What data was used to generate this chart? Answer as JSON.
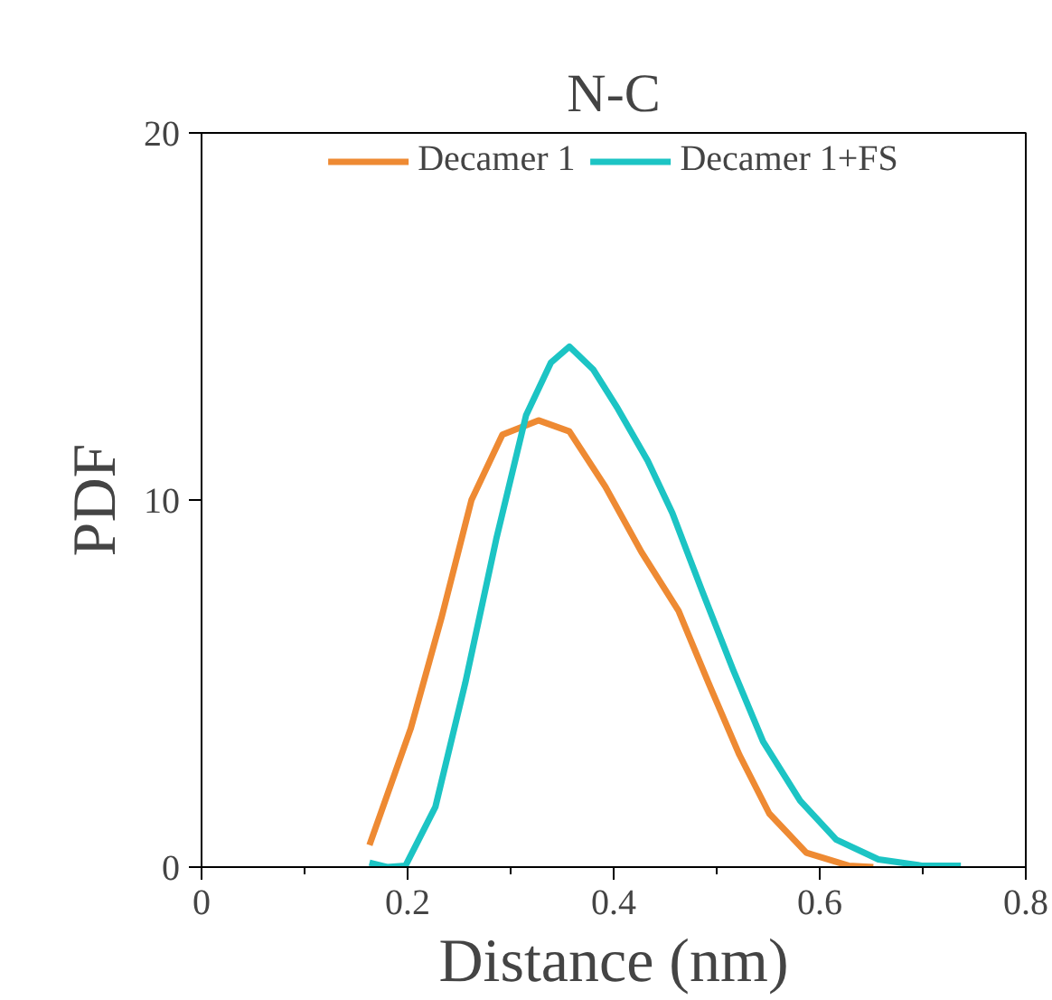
{
  "chart_data": {
    "type": "line",
    "title": "N-C",
    "xlabel": "Distance (nm)",
    "ylabel": "PDF",
    "xlim": [
      0,
      0.8
    ],
    "xticks": [
      0,
      0.2,
      0.4,
      0.6,
      0.8
    ],
    "ylim": [
      0,
      20
    ],
    "yticks": [
      0,
      10,
      20
    ],
    "grid": false,
    "legend": "top",
    "marker": "none",
    "line_style": "solid",
    "series": [
      {
        "name": "Decamer 1",
        "color": "#ee8a33",
        "x": [
          0.163,
          0.203,
          0.233,
          0.262,
          0.292,
          0.327,
          0.357,
          0.392,
          0.427,
          0.463,
          0.492,
          0.522,
          0.551,
          0.587,
          0.628,
          0.652
        ],
        "values": [
          0.6,
          3.77,
          6.8,
          10.0,
          11.78,
          12.17,
          11.87,
          10.36,
          8.58,
          6.98,
          5.02,
          3.06,
          1.46,
          0.39,
          0.04,
          0
        ]
      },
      {
        "name": "Decamer 1+FS",
        "color": "#1cc4c4",
        "x": [
          0.163,
          0.18,
          0.198,
          0.227,
          0.256,
          0.286,
          0.315,
          0.339,
          0.357,
          0.38,
          0.404,
          0.433,
          0.457,
          0.486,
          0.516,
          0.545,
          0.581,
          0.616,
          0.657,
          0.699,
          0.737
        ],
        "values": [
          0.12,
          0,
          0.04,
          1.64,
          5.02,
          8.93,
          12.31,
          13.74,
          14.18,
          13.56,
          12.49,
          11.07,
          9.64,
          7.51,
          5.37,
          3.42,
          1.81,
          0.75,
          0.21,
          0.04,
          0.04
        ]
      }
    ]
  }
}
